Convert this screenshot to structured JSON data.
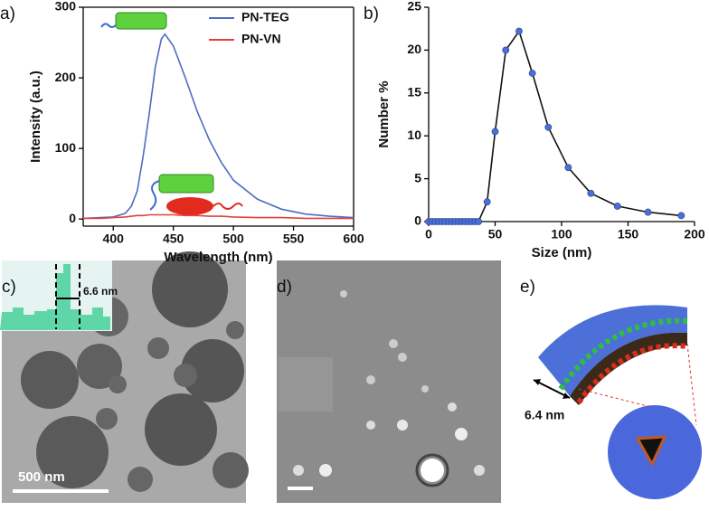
{
  "chart_data": [
    {
      "type": "line",
      "label": "a)",
      "x_label": "Wavelength (nm)",
      "y_label": "Intensity (a.u.)",
      "x": [
        375,
        390,
        400,
        410,
        415,
        420,
        425,
        430,
        435,
        440,
        443,
        450,
        460,
        470,
        480,
        490,
        500,
        520,
        540,
        560,
        580,
        600
      ],
      "series": [
        {
          "name": "PN-TEG",
          "color": "#4f6bc4",
          "values": [
            1,
            2,
            3,
            8,
            18,
            40,
            90,
            150,
            215,
            255,
            262,
            245,
            200,
            152,
            112,
            80,
            55,
            28,
            14,
            7,
            4,
            2
          ]
        },
        {
          "name": "PN-VN",
          "color": "#e0413f",
          "values": [
            1,
            1,
            2,
            3,
            4,
            5,
            5,
            6,
            6,
            6,
            6,
            6,
            5,
            5,
            4,
            4,
            3,
            2,
            2,
            1,
            1,
            1
          ]
        }
      ],
      "xlim": [
        375,
        600
      ],
      "xticks": [
        400,
        450,
        500,
        550,
        600
      ],
      "ylim": [
        -10,
        300
      ],
      "yticks": [
        0,
        100,
        200,
        300
      ],
      "legend": "upper right",
      "frame": true
    },
    {
      "type": "line",
      "label": "b)",
      "x_label": "Size (nm)",
      "y_label": "Number %",
      "x": [
        0,
        2.5,
        5,
        7.5,
        10,
        12.5,
        15,
        17.5,
        20,
        22.5,
        25,
        27.5,
        30,
        32.5,
        35,
        37.5,
        44,
        50,
        58,
        68,
        78,
        90,
        105,
        122,
        142,
        165,
        190
      ],
      "values": [
        0,
        0,
        0,
        0,
        0,
        0,
        0,
        0,
        0,
        0,
        0,
        0,
        0,
        0,
        0,
        0,
        2.3,
        10.5,
        20,
        22.2,
        17.3,
        11,
        6.3,
        3.3,
        1.8,
        1.1,
        0.7
      ],
      "color": "#111111",
      "markers": true,
      "marker_color": "#4a6fd6",
      "xlim": [
        0,
        200
      ],
      "xticks": [
        0,
        50,
        100,
        150,
        200
      ],
      "ylim": [
        0,
        25
      ],
      "yticks": [
        0,
        5,
        10,
        15,
        20,
        25
      ],
      "frame": false
    }
  ],
  "panels": [
    {
      "label": "c)",
      "scale_bar": "500 nm",
      "inset_label": "6.6 nm"
    },
    {
      "label": "d)"
    },
    {
      "label": "e)",
      "dimension": "6.4 nm"
    }
  ]
}
